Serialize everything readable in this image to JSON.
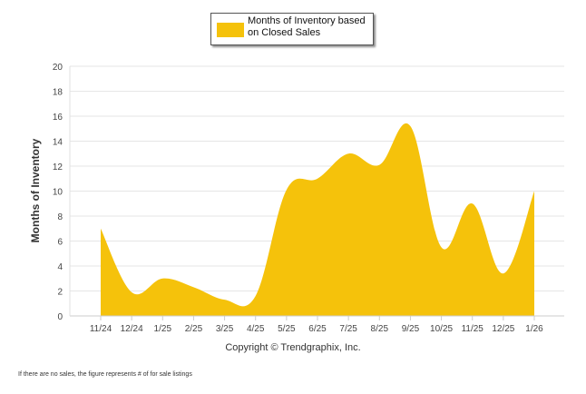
{
  "legend": {
    "label": "Months of Inventory based on Closed Sales"
  },
  "copyright": "Copyright © Trendgraphix, Inc.",
  "footnote": "If there are no sales, the figure represents # of for sale listings",
  "chart_data": {
    "type": "area",
    "title": "",
    "xlabel": "",
    "ylabel": "Months of Inventory",
    "categories": [
      "11/24",
      "12/24",
      "1/25",
      "2/25",
      "3/25",
      "4/25",
      "5/25",
      "6/25",
      "7/25",
      "8/25",
      "9/25",
      "10/25",
      "11/25",
      "12/25",
      "1/26"
    ],
    "series": [
      {
        "name": "Months of Inventory based on Closed Sales",
        "values": [
          7.0,
          1.9,
          3.0,
          2.3,
          1.3,
          1.6,
          10.1,
          11.0,
          13.0,
          12.1,
          15.2,
          5.5,
          9.0,
          3.4,
          10.0
        ],
        "color": "#f5c20b"
      }
    ],
    "ylim": [
      0,
      20
    ],
    "yticks": [
      0,
      2,
      4,
      6,
      8,
      10,
      12,
      14,
      16,
      18,
      20
    ],
    "grid": true,
    "legend_position": "top-center"
  }
}
